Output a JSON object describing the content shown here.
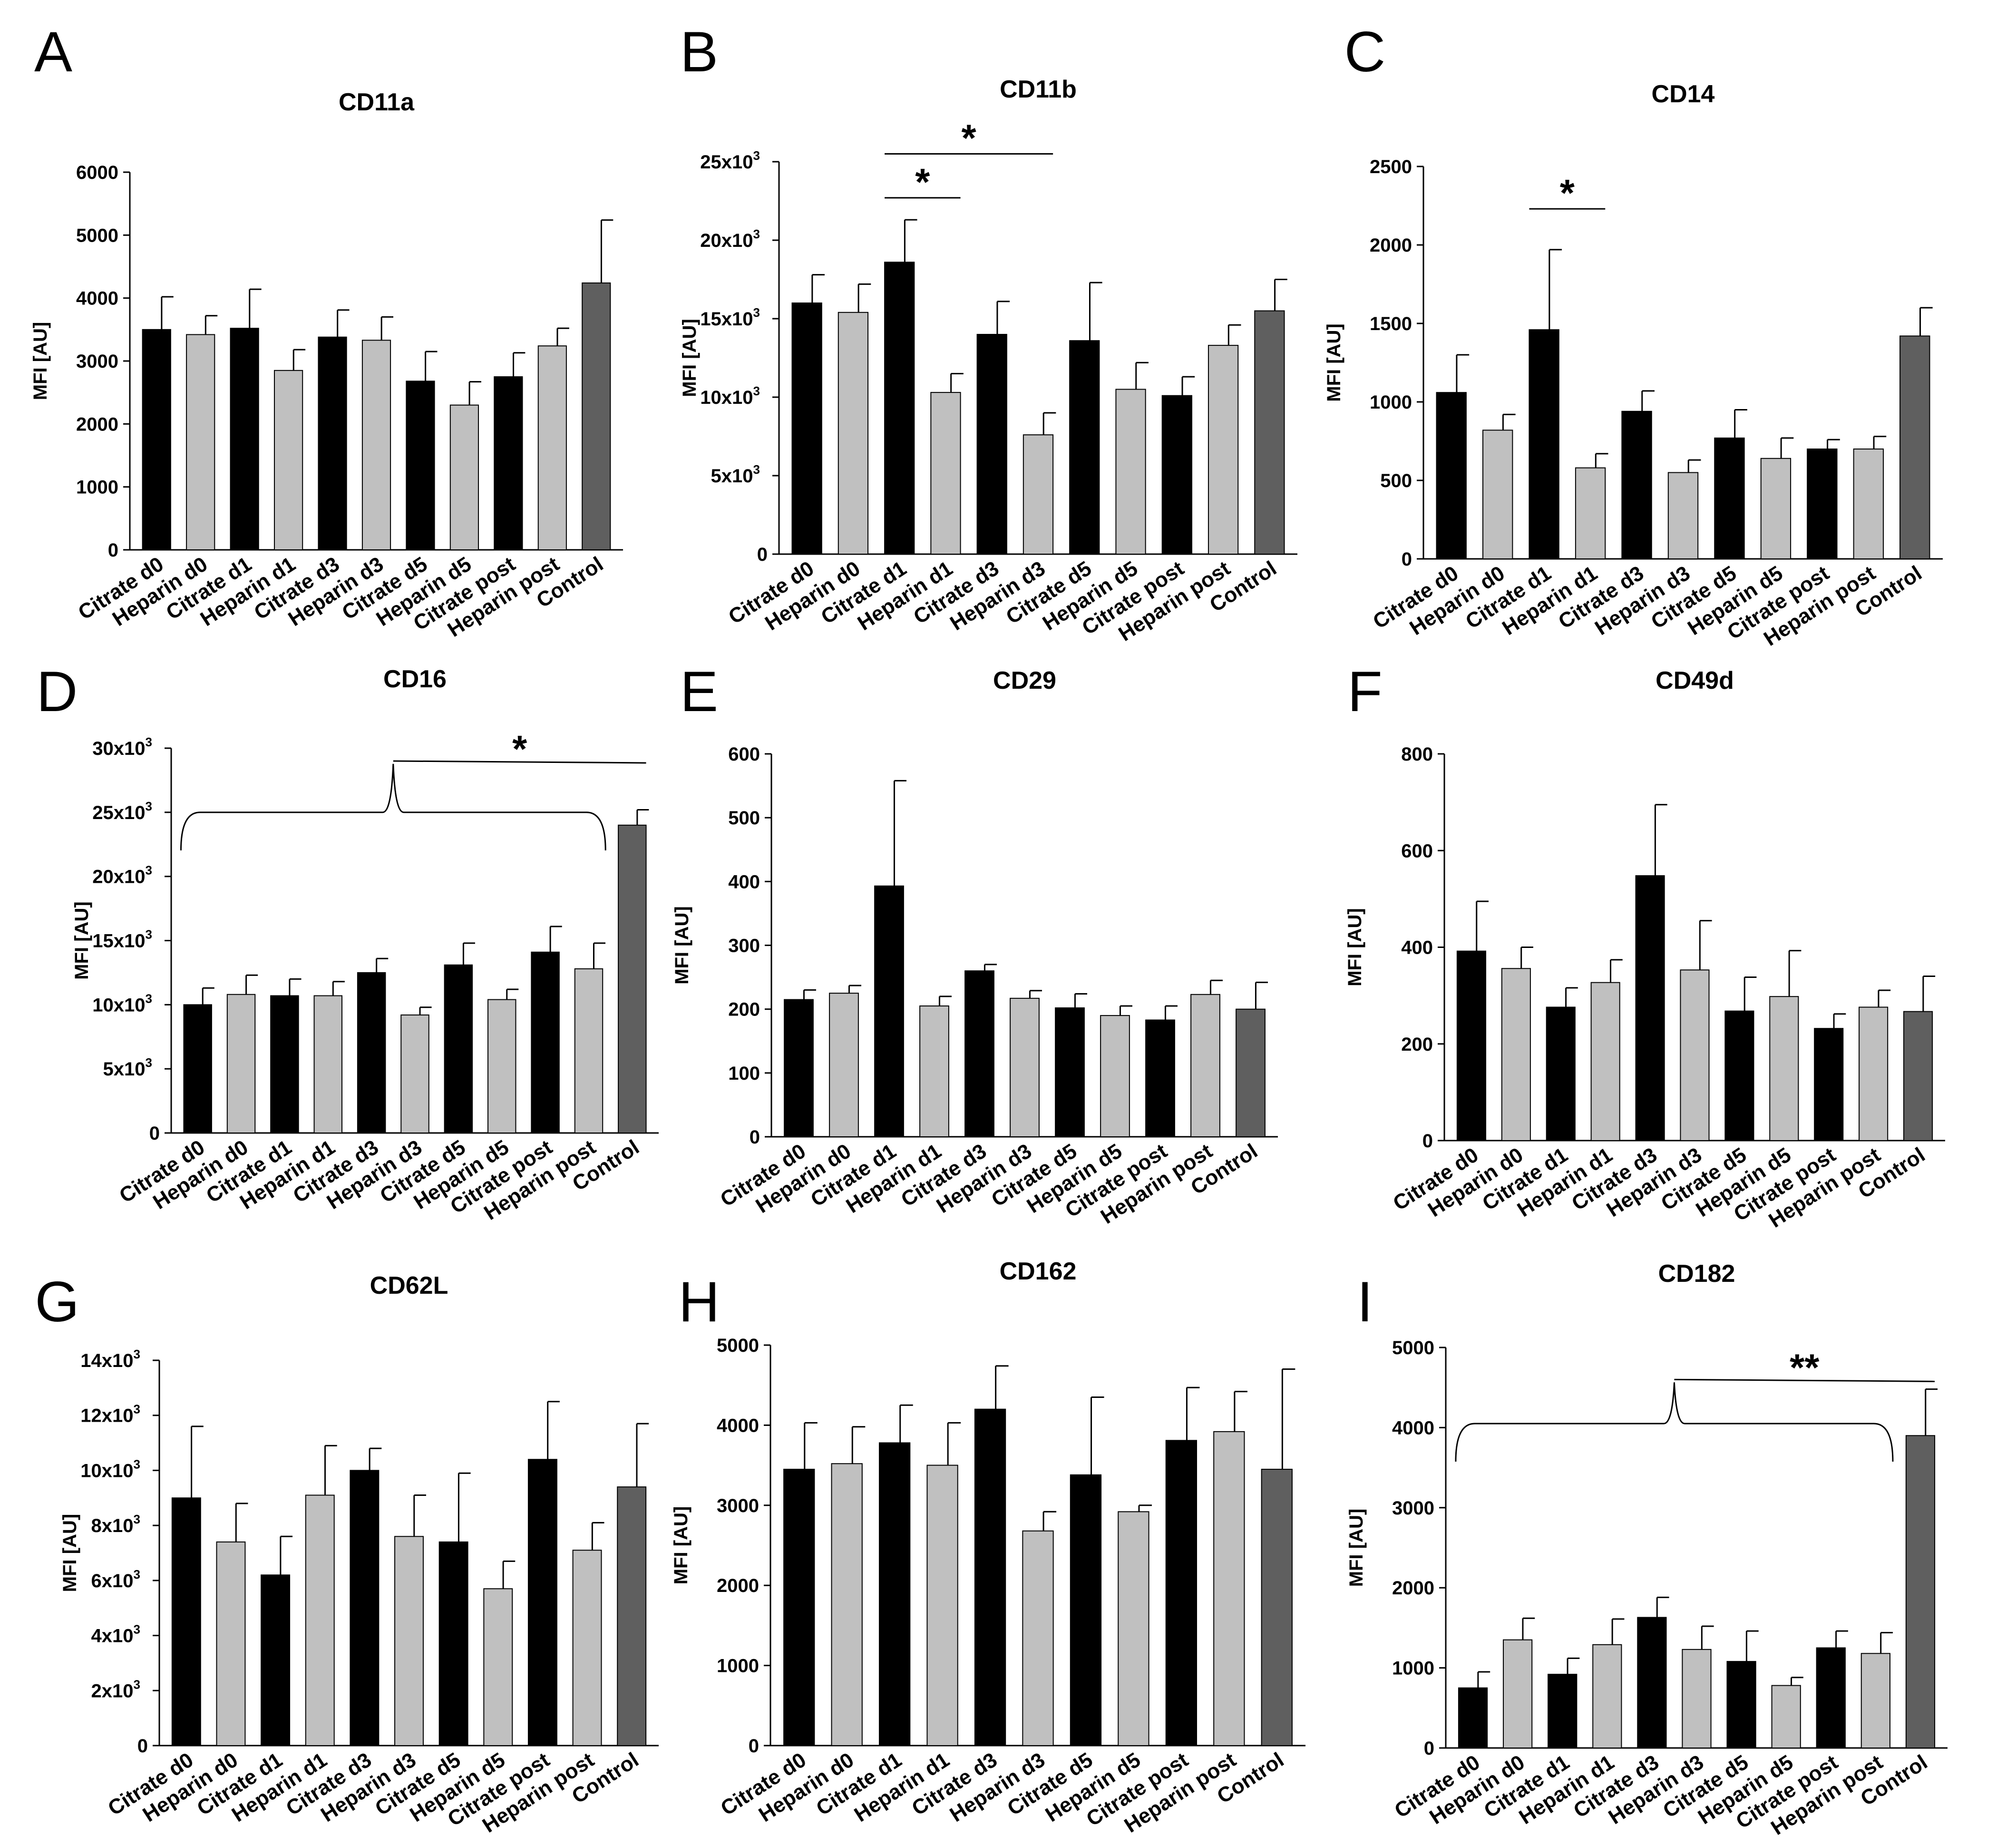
{
  "figure": {
    "categories": [
      "Citrate d0",
      "Heparin d0",
      "Citrate d1",
      "Heparin d1",
      "Citrate d3",
      "Heparin d3",
      "Citrate d5",
      "Heparin d5",
      "Citrate post",
      "Heparin post",
      "Control"
    ],
    "colors": {
      "citrate": "#000000",
      "heparin": "#c0c0c0",
      "control": "#5f5f5f",
      "edge": "#000000"
    }
  },
  "chart_data": [
    {
      "panel": "A",
      "type": "bar",
      "title": "CD11a",
      "ylabel": "MFI [AU]",
      "ylim": [
        0,
        6000
      ],
      "yticks": [
        0,
        1000,
        2000,
        3000,
        4000,
        5000,
        6000
      ],
      "ytick_labels": [
        "0",
        "1000",
        "2000",
        "3000",
        "4000",
        "5000",
        "6000"
      ],
      "values": [
        3500,
        3420,
        3520,
        2850,
        3380,
        3330,
        2680,
        2300,
        2750,
        3240,
        4240
      ],
      "errors": [
        520,
        300,
        620,
        330,
        430,
        370,
        470,
        370,
        380,
        280,
        1000
      ],
      "significance": []
    },
    {
      "panel": "B",
      "type": "bar",
      "title": "CD11b",
      "ylabel": "MFI [AU]",
      "ylim": [
        0,
        25000
      ],
      "yticks": [
        0,
        5000,
        10000,
        15000,
        20000,
        25000
      ],
      "ytick_labels": [
        "0",
        "5x10",
        "10x10",
        "15x10",
        "20x10",
        "25x10"
      ],
      "ytick_exponents": [
        "",
        "3",
        "3",
        "3",
        "3",
        "3"
      ],
      "values": [
        16000,
        15400,
        18600,
        10300,
        14000,
        7600,
        13600,
        10500,
        10100,
        13300,
        15500
      ],
      "errors": [
        1800,
        1800,
        2700,
        1200,
        2100,
        1400,
        3700,
        1700,
        1200,
        1300,
        2000
      ],
      "significance": [
        {
          "kind": "line",
          "from": 2,
          "to": 3,
          "label": "*",
          "level": 22700
        },
        {
          "kind": "line",
          "from": 2,
          "to": 5,
          "label": "*",
          "level": 25500
        }
      ]
    },
    {
      "panel": "C",
      "type": "bar",
      "title": "CD14",
      "ylabel": "MFI [AU]",
      "ylim": [
        0,
        2500
      ],
      "yticks": [
        0,
        500,
        1000,
        1500,
        2000,
        2500
      ],
      "ytick_labels": [
        "0",
        "500",
        "1000",
        "1500",
        "2000",
        "2500"
      ],
      "values": [
        1060,
        820,
        1460,
        580,
        940,
        550,
        770,
        640,
        700,
        700,
        1420
      ],
      "errors": [
        240,
        100,
        510,
        90,
        130,
        80,
        180,
        130,
        60,
        80,
        180
      ],
      "significance": [
        {
          "kind": "line",
          "from": 2,
          "to": 3,
          "label": "*",
          "level": 2230
        }
      ]
    },
    {
      "panel": "D",
      "type": "bar",
      "title": "CD16",
      "ylabel": "MFI [AU]",
      "ylim": [
        0,
        30000
      ],
      "yticks": [
        0,
        5000,
        10000,
        15000,
        20000,
        25000,
        30000
      ],
      "ytick_labels": [
        "0",
        "5x10",
        "10x10",
        "15x10",
        "20x10",
        "25x10",
        "30x10"
      ],
      "ytick_exponents": [
        "",
        "3",
        "3",
        "3",
        "3",
        "3",
        "3"
      ],
      "values": [
        10000,
        10800,
        10700,
        10700,
        12500,
        9200,
        13100,
        10400,
        14100,
        12800,
        24000
      ],
      "errors": [
        1300,
        1500,
        1300,
        1100,
        1100,
        600,
        1700,
        800,
        2000,
        2000,
        1200
      ],
      "significance": [
        {
          "kind": "brace",
          "from": 0,
          "to": 9,
          "target": 10,
          "label": "*",
          "brace_level": 25000,
          "line_level": 29000
        }
      ]
    },
    {
      "panel": "E",
      "type": "bar",
      "title": "CD29",
      "ylabel": "MFI [AU]",
      "ylim": [
        0,
        600
      ],
      "yticks": [
        0,
        100,
        200,
        300,
        400,
        500,
        600
      ],
      "ytick_labels": [
        "0",
        "100",
        "200",
        "300",
        "400",
        "500",
        "600"
      ],
      "values": [
        215,
        225,
        393,
        205,
        260,
        217,
        202,
        190,
        183,
        223,
        200
      ],
      "errors": [
        15,
        12,
        165,
        15,
        10,
        12,
        22,
        15,
        22,
        22,
        42
      ],
      "significance": []
    },
    {
      "panel": "F",
      "type": "bar",
      "title": "CD49d",
      "ylabel": "MFI [AU]",
      "ylim": [
        0,
        800
      ],
      "yticks": [
        0,
        200,
        400,
        600,
        800
      ],
      "ytick_labels": [
        "0",
        "200",
        "400",
        "600",
        "800"
      ],
      "values": [
        392,
        356,
        276,
        327,
        548,
        353,
        268,
        298,
        232,
        276,
        267
      ],
      "errors": [
        103,
        44,
        40,
        47,
        147,
        102,
        70,
        95,
        30,
        35,
        73
      ],
      "significance": []
    },
    {
      "panel": "G",
      "type": "bar",
      "title": "CD62L",
      "ylabel": "MFI [AU]",
      "ylim": [
        0,
        14000
      ],
      "yticks": [
        0,
        2000,
        4000,
        6000,
        8000,
        10000,
        12000,
        14000
      ],
      "ytick_labels": [
        "0",
        "2x10",
        "4x10",
        "6x10",
        "8x10",
        "10x10",
        "12x10",
        "14x10"
      ],
      "ytick_exponents": [
        "",
        "3",
        "3",
        "3",
        "3",
        "3",
        "3",
        "3"
      ],
      "values": [
        9000,
        7400,
        6200,
        9100,
        10000,
        7600,
        7400,
        5700,
        10400,
        7100,
        9400
      ],
      "errors": [
        2600,
        1400,
        1400,
        1800,
        800,
        1500,
        2500,
        1000,
        2100,
        1000,
        2300
      ],
      "significance": []
    },
    {
      "panel": "H",
      "type": "bar",
      "title": "CD162",
      "ylabel": "MFI [AU]",
      "ylim": [
        0,
        5000
      ],
      "yticks": [
        0,
        1000,
        2000,
        3000,
        4000,
        5000
      ],
      "ytick_labels": [
        "0",
        "1000",
        "2000",
        "3000",
        "4000",
        "5000"
      ],
      "values": [
        3450,
        3520,
        3780,
        3500,
        4200,
        2680,
        3380,
        2920,
        3810,
        3920,
        3450
      ],
      "errors": [
        580,
        460,
        470,
        530,
        540,
        240,
        970,
        80,
        660,
        500,
        1250
      ],
      "significance": []
    },
    {
      "panel": "I",
      "type": "bar",
      "title": "CD182",
      "ylabel": "MFI [AU]",
      "ylim": [
        0,
        5000
      ],
      "yticks": [
        0,
        1000,
        2000,
        3000,
        4000,
        5000
      ],
      "ytick_labels": [
        "0",
        "1000",
        "2000",
        "3000",
        "4000",
        "5000"
      ],
      "values": [
        750,
        1350,
        920,
        1290,
        1630,
        1230,
        1080,
        780,
        1250,
        1180,
        3900
      ],
      "errors": [
        200,
        270,
        200,
        320,
        250,
        290,
        380,
        100,
        210,
        260,
        580
      ],
      "significance": [
        {
          "kind": "brace",
          "from": 0,
          "to": 9,
          "target": 10,
          "label": "**",
          "brace_level": 4050,
          "line_level": 4600
        }
      ]
    }
  ]
}
